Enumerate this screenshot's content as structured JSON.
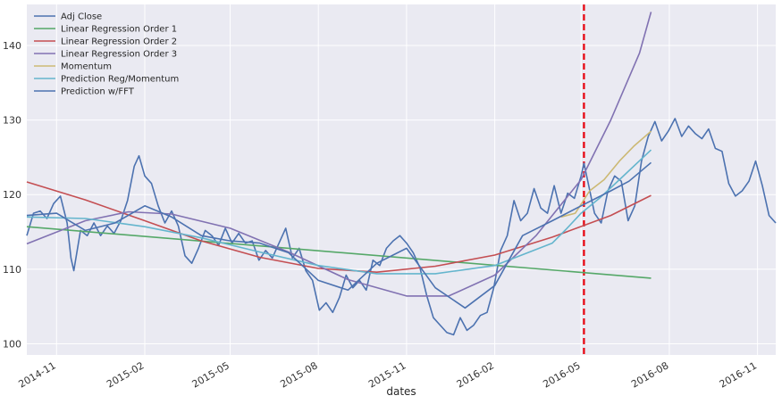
{
  "chart_data": {
    "type": "line",
    "title": "",
    "xlabel": "dates",
    "ylabel": "",
    "ylim": [
      98.5,
      145.5
    ],
    "xlim": [
      "2014-10-01",
      "2016-11-20"
    ],
    "y_ticks": [
      100,
      110,
      120,
      130,
      140
    ],
    "x_ticks": [
      {
        "date": "2014-11-01",
        "label": "2014-11"
      },
      {
        "date": "2015-02-01",
        "label": "2015-02"
      },
      {
        "date": "2015-05-01",
        "label": "2015-05"
      },
      {
        "date": "2015-08-01",
        "label": "2015-08"
      },
      {
        "date": "2015-11-01",
        "label": "2015-11"
      },
      {
        "date": "2016-02-01",
        "label": "2016-02"
      },
      {
        "date": "2016-05-01",
        "label": "2016-05"
      },
      {
        "date": "2016-08-01",
        "label": "2016-08"
      },
      {
        "date": "2016-11-01",
        "label": "2016-11"
      }
    ],
    "grid": true,
    "legend_position": "top-left",
    "vline": {
      "date": "2016-05-04",
      "color": "#e8000b",
      "style": "dashed"
    },
    "series": [
      {
        "name": "Adj Close",
        "color": "#4c72b0",
        "points": [
          [
            "2014-10-01",
            114.5
          ],
          [
            "2014-10-08",
            117.5
          ],
          [
            "2014-10-15",
            117.8
          ],
          [
            "2014-10-22",
            116.8
          ],
          [
            "2014-10-29",
            118.8
          ],
          [
            "2014-11-05",
            119.8
          ],
          [
            "2014-11-12",
            116.2
          ],
          [
            "2014-11-16",
            111.5
          ],
          [
            "2014-11-19",
            109.8
          ],
          [
            "2014-11-26",
            115.2
          ],
          [
            "2014-12-03",
            114.5
          ],
          [
            "2014-12-10",
            116.2
          ],
          [
            "2014-12-17",
            114.5
          ],
          [
            "2014-12-24",
            115.8
          ],
          [
            "2014-12-31",
            114.8
          ],
          [
            "2015-01-07",
            116.5
          ],
          [
            "2015-01-14",
            119.2
          ],
          [
            "2015-01-21",
            123.8
          ],
          [
            "2015-01-26",
            125.2
          ],
          [
            "2015-02-01",
            122.5
          ],
          [
            "2015-02-08",
            121.5
          ],
          [
            "2015-02-15",
            118.5
          ],
          [
            "2015-02-22",
            116.2
          ],
          [
            "2015-03-01",
            117.8
          ],
          [
            "2015-03-08",
            115.8
          ],
          [
            "2015-03-15",
            111.8
          ],
          [
            "2015-03-22",
            110.8
          ],
          [
            "2015-03-29",
            112.8
          ],
          [
            "2015-04-05",
            115.2
          ],
          [
            "2015-04-12",
            114.5
          ],
          [
            "2015-04-19",
            113.2
          ],
          [
            "2015-04-26",
            115.5
          ],
          [
            "2015-05-03",
            113.5
          ],
          [
            "2015-05-10",
            114.8
          ],
          [
            "2015-05-17",
            113.5
          ],
          [
            "2015-05-24",
            113.8
          ],
          [
            "2015-05-31",
            111.2
          ],
          [
            "2015-06-07",
            112.5
          ],
          [
            "2015-06-14",
            111.5
          ],
          [
            "2015-06-21",
            113.5
          ],
          [
            "2015-06-28",
            115.5
          ],
          [
            "2015-07-05",
            111.5
          ],
          [
            "2015-07-12",
            112.8
          ],
          [
            "2015-07-19",
            109.8
          ],
          [
            "2015-07-26",
            108.5
          ],
          [
            "2015-08-02",
            104.5
          ],
          [
            "2015-08-09",
            105.5
          ],
          [
            "2015-08-16",
            104.2
          ],
          [
            "2015-08-23",
            106.2
          ],
          [
            "2015-08-30",
            109.2
          ],
          [
            "2015-09-06",
            107.5
          ],
          [
            "2015-09-13",
            108.5
          ],
          [
            "2015-09-20",
            107.2
          ],
          [
            "2015-09-27",
            111.2
          ],
          [
            "2015-10-04",
            110.5
          ],
          [
            "2015-10-11",
            112.8
          ],
          [
            "2015-10-18",
            113.8
          ],
          [
            "2015-10-25",
            114.5
          ],
          [
            "2015-11-01",
            113.5
          ],
          [
            "2015-11-08",
            112.2
          ],
          [
            "2015-11-15",
            110.2
          ],
          [
            "2015-11-22",
            106.5
          ],
          [
            "2015-11-29",
            103.5
          ],
          [
            "2015-12-06",
            102.5
          ],
          [
            "2015-12-13",
            101.5
          ],
          [
            "2015-12-20",
            101.2
          ],
          [
            "2015-12-27",
            103.5
          ],
          [
            "2016-01-03",
            101.8
          ],
          [
            "2016-01-10",
            102.5
          ],
          [
            "2016-01-17",
            103.8
          ],
          [
            "2016-01-24",
            104.2
          ],
          [
            "2016-01-31",
            107.5
          ],
          [
            "2016-02-07",
            112.5
          ],
          [
            "2016-02-14",
            114.5
          ],
          [
            "2016-02-21",
            119.2
          ],
          [
            "2016-02-28",
            116.5
          ],
          [
            "2016-03-06",
            117.5
          ],
          [
            "2016-03-13",
            120.8
          ],
          [
            "2016-03-20",
            118.2
          ],
          [
            "2016-03-27",
            117.5
          ],
          [
            "2016-04-03",
            121.2
          ],
          [
            "2016-04-10",
            117.5
          ],
          [
            "2016-04-17",
            120.2
          ],
          [
            "2016-04-24",
            119.5
          ],
          [
            "2016-05-01",
            122.5
          ],
          [
            "2016-05-04",
            124.2
          ],
          [
            "2016-05-08",
            121.8
          ],
          [
            "2016-05-15",
            117.5
          ],
          [
            "2016-05-22",
            116.2
          ],
          [
            "2016-05-29",
            120.5
          ],
          [
            "2016-06-05",
            122.5
          ],
          [
            "2016-06-12",
            121.8
          ],
          [
            "2016-06-19",
            116.5
          ],
          [
            "2016-06-26",
            118.5
          ],
          [
            "2016-07-03",
            124.5
          ],
          [
            "2016-07-10",
            127.8
          ],
          [
            "2016-07-17",
            129.8
          ],
          [
            "2016-07-24",
            127.2
          ],
          [
            "2016-07-31",
            128.5
          ],
          [
            "2016-08-07",
            130.2
          ],
          [
            "2016-08-14",
            127.8
          ],
          [
            "2016-08-21",
            129.2
          ],
          [
            "2016-08-28",
            128.2
          ],
          [
            "2016-09-04",
            127.5
          ],
          [
            "2016-09-11",
            128.8
          ],
          [
            "2016-09-18",
            126.2
          ],
          [
            "2016-09-25",
            125.8
          ],
          [
            "2016-10-02",
            121.5
          ],
          [
            "2016-10-09",
            119.8
          ],
          [
            "2016-10-16",
            120.5
          ],
          [
            "2016-10-23",
            121.8
          ],
          [
            "2016-10-30",
            124.5
          ],
          [
            "2016-11-06",
            121.2
          ],
          [
            "2016-11-13",
            117.2
          ],
          [
            "2016-11-20",
            116.2
          ]
        ]
      },
      {
        "name": "Linear Regression Order 1",
        "color": "#55a868",
        "points": [
          [
            "2014-10-01",
            115.7
          ],
          [
            "2016-07-13",
            108.8
          ]
        ]
      },
      {
        "name": "Linear Regression Order 2",
        "color": "#c44e52",
        "points": [
          [
            "2014-10-01",
            121.7
          ],
          [
            "2014-12-01",
            119.3
          ],
          [
            "2015-02-01",
            116.5
          ],
          [
            "2015-04-01",
            113.8
          ],
          [
            "2015-06-01",
            111.6
          ],
          [
            "2015-08-01",
            110.1
          ],
          [
            "2015-10-01",
            109.6
          ],
          [
            "2015-12-01",
            110.4
          ],
          [
            "2016-02-01",
            111.9
          ],
          [
            "2016-04-01",
            114.3
          ],
          [
            "2016-06-01",
            117.2
          ],
          [
            "2016-07-13",
            119.9
          ]
        ]
      },
      {
        "name": "Linear Regression Order 3",
        "color": "#8172b2",
        "points": [
          [
            "2014-10-01",
            113.4
          ],
          [
            "2014-12-01",
            116.5
          ],
          [
            "2015-01-15",
            117.7
          ],
          [
            "2015-03-01",
            117.4
          ],
          [
            "2015-05-01",
            115.5
          ],
          [
            "2015-07-01",
            112.3
          ],
          [
            "2015-09-01",
            108.6
          ],
          [
            "2015-11-01",
            106.4
          ],
          [
            "2015-12-15",
            106.4
          ],
          [
            "2016-02-01",
            109.2
          ],
          [
            "2016-03-15",
            114.5
          ],
          [
            "2016-05-01",
            122.0
          ],
          [
            "2016-06-01",
            130.0
          ],
          [
            "2016-07-01",
            139.0
          ],
          [
            "2016-07-13",
            144.5
          ]
        ]
      },
      {
        "name": "Momentum",
        "color": "#ccb974",
        "points": [
          [
            "2016-04-10",
            117.0
          ],
          [
            "2016-04-25",
            117.5
          ],
          [
            "2016-05-10",
            120.5
          ],
          [
            "2016-05-25",
            122.0
          ],
          [
            "2016-06-10",
            124.5
          ],
          [
            "2016-06-25",
            126.5
          ],
          [
            "2016-07-13",
            128.5
          ]
        ]
      },
      {
        "name": "Prediction Reg/Momentum",
        "color": "#64b5cd",
        "points": [
          [
            "2014-10-01",
            117.0
          ],
          [
            "2014-12-01",
            116.8
          ],
          [
            "2015-02-01",
            115.7
          ],
          [
            "2015-04-01",
            114.2
          ],
          [
            "2015-06-01",
            112.3
          ],
          [
            "2015-08-01",
            110.5
          ],
          [
            "2015-10-01",
            109.4
          ],
          [
            "2015-12-01",
            109.4
          ],
          [
            "2016-02-01",
            110.5
          ],
          [
            "2016-04-01",
            113.5
          ],
          [
            "2016-04-15",
            115.3
          ],
          [
            "2016-05-01",
            117.5
          ],
          [
            "2016-05-20",
            119.5
          ],
          [
            "2016-06-10",
            122.0
          ],
          [
            "2016-07-13",
            126.0
          ]
        ]
      },
      {
        "name": "Prediction w/FFT",
        "color": "#4c72b0",
        "points": [
          [
            "2014-10-01",
            117.2
          ],
          [
            "2014-11-01",
            117.5
          ],
          [
            "2014-12-01",
            115.2
          ],
          [
            "2015-01-01",
            116.2
          ],
          [
            "2015-02-01",
            118.5
          ],
          [
            "2015-03-01",
            117.0
          ],
          [
            "2015-04-01",
            114.5
          ],
          [
            "2015-05-01",
            113.8
          ],
          [
            "2015-06-01",
            113.5
          ],
          [
            "2015-07-01",
            112.2
          ],
          [
            "2015-08-01",
            108.5
          ],
          [
            "2015-09-01",
            107.2
          ],
          [
            "2015-10-01",
            110.8
          ],
          [
            "2015-11-01",
            112.8
          ],
          [
            "2015-12-01",
            107.5
          ],
          [
            "2016-01-01",
            104.8
          ],
          [
            "2016-02-01",
            107.8
          ],
          [
            "2016-03-01",
            114.5
          ],
          [
            "2016-04-01",
            116.5
          ],
          [
            "2016-05-01",
            118.5
          ],
          [
            "2016-06-01",
            120.5
          ],
          [
            "2016-06-20",
            121.8
          ],
          [
            "2016-07-13",
            124.3
          ]
        ]
      }
    ]
  }
}
